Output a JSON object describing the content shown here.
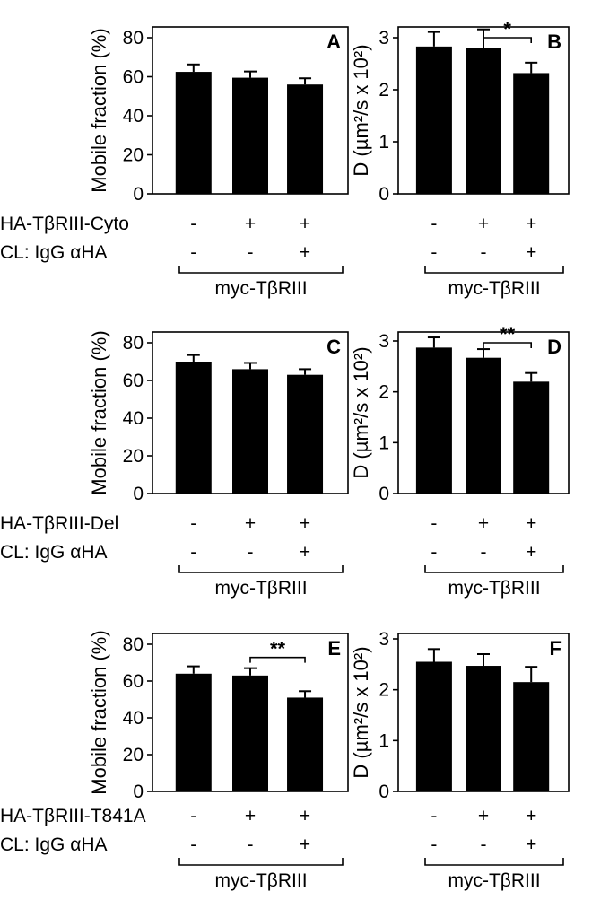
{
  "chart_data": [
    {
      "panel": "A",
      "type": "bar",
      "ylabel": "Mobile fraction (%)",
      "yticks": [
        "0",
        "20",
        "40",
        "60",
        "80"
      ],
      "ylim": [
        0,
        85
      ],
      "values": [
        62.5,
        59.5,
        56
      ],
      "errors": [
        3.8,
        3.2,
        3.2
      ],
      "significance": null
    },
    {
      "panel": "B",
      "type": "bar",
      "ylabel": "D (µm²/s x 10²)",
      "yticks": [
        "0",
        "1",
        "2",
        "3"
      ],
      "ylim": [
        0,
        3.4
      ],
      "values": [
        2.83,
        2.8,
        2.32
      ],
      "errors": [
        0.28,
        0.36,
        0.2
      ],
      "significance": {
        "from": 1,
        "to": 2,
        "label": "*"
      }
    },
    {
      "panel": "C",
      "type": "bar",
      "ylabel": "Mobile fraction (%)",
      "yticks": [
        "0",
        "20",
        "40",
        "60",
        "80"
      ],
      "ylim": [
        0,
        80
      ],
      "values": [
        70,
        66,
        63
      ],
      "errors": [
        3.5,
        3.3,
        3.0
      ],
      "significance": null
    },
    {
      "panel": "D",
      "type": "bar",
      "ylabel": "D (µm²/s x 10²)",
      "yticks": [
        "0",
        "1",
        "2",
        "3"
      ],
      "ylim": [
        0,
        3.4
      ],
      "values": [
        2.87,
        2.67,
        2.2
      ],
      "errors": [
        0.2,
        0.17,
        0.17
      ],
      "significance": {
        "from": 1,
        "to": 2,
        "label": "**"
      }
    },
    {
      "panel": "E",
      "type": "bar",
      "ylabel": "Mobile fraction (%)",
      "yticks": [
        "0",
        "20",
        "40",
        "60",
        "80"
      ],
      "ylim": [
        0,
        80
      ],
      "values": [
        64,
        63,
        51
      ],
      "errors": [
        4,
        4,
        3.5
      ],
      "significance": {
        "from": 1,
        "to": 2,
        "label": "**"
      }
    },
    {
      "panel": "F",
      "type": "bar",
      "ylabel": "D (µm²/s x 10²)",
      "yticks": [
        "0",
        "1",
        "2",
        "3"
      ],
      "ylim": [
        0,
        3
      ],
      "values": [
        2.55,
        2.47,
        2.15
      ],
      "errors": [
        0.25,
        0.23,
        0.3
      ],
      "significance": null
    }
  ],
  "rows": [
    {
      "condition1": "HA-TβRIII-Cyto",
      "condition2": "CL: IgG αHA",
      "signs1": [
        "-",
        "+",
        "+"
      ],
      "signs2": [
        "-",
        "-",
        "+"
      ],
      "bracket": "myc-TβRIII"
    },
    {
      "condition1": "HA-TβRIII-Del",
      "condition2": "CL: IgG αHA",
      "signs1": [
        "-",
        "+",
        "+"
      ],
      "signs2": [
        "-",
        "-",
        "+"
      ],
      "bracket": "myc-TβRIII"
    },
    {
      "condition1": "HA-TβRIII-T841A",
      "condition2": "CL: IgG αHA",
      "signs1": [
        "-",
        "+",
        "+"
      ],
      "signs2": [
        "-",
        "-",
        "+"
      ],
      "bracket": "myc-TβRIII"
    }
  ]
}
